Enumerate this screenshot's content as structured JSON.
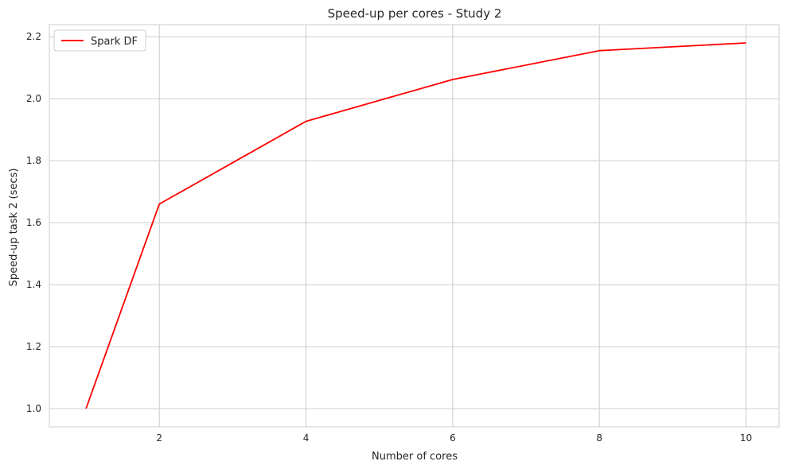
{
  "chart_data": {
    "type": "line",
    "title": "Speed-up per cores - Study 2",
    "xlabel": "Number of cores",
    "ylabel": "Speed-up task 2 (secs)",
    "x": [
      1,
      2,
      4,
      6,
      8,
      10
    ],
    "series": [
      {
        "name": "Spark DF",
        "color": "#ff0000",
        "values": [
          1.0,
          1.66,
          1.927,
          2.062,
          2.155,
          2.18
        ]
      }
    ],
    "xlim": [
      0.5,
      10.45
    ],
    "ylim": [
      0.941,
      2.239
    ],
    "xticks": [
      2,
      4,
      6,
      8,
      10
    ],
    "xtick_labels": [
      "2",
      "4",
      "6",
      "8",
      "10"
    ],
    "yticks": [
      1.0,
      1.2,
      1.4,
      1.6,
      1.8,
      2.0,
      2.2
    ],
    "ytick_labels": [
      "1.0",
      "1.2",
      "1.4",
      "1.6",
      "1.8",
      "2.0",
      "2.2"
    ],
    "grid": true,
    "legend_position": "top-left",
    "colors": {
      "grid": "#cccccc",
      "spine": "#cccccc",
      "text": "#262626"
    }
  }
}
